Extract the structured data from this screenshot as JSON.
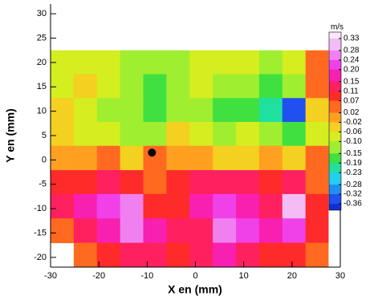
{
  "chart_data": {
    "type": "contour",
    "x_label": "X en (mm)",
    "y_label": "Y en (mm)",
    "colorbar_title": "m/s",
    "xlim": [
      -30,
      30
    ],
    "ylim": [
      -22,
      32
    ],
    "xticks": [
      -30,
      -20,
      -10,
      0,
      10,
      20,
      30
    ],
    "yticks": [
      -20,
      -15,
      -10,
      -5,
      0,
      5,
      10,
      15,
      20,
      25,
      30
    ],
    "x_edges": [
      -30,
      -25.2,
      -20.4,
      -15.6,
      -10.8,
      -6.0,
      -1.2,
      3.6,
      8.4,
      13.2,
      18.0,
      22.8,
      27.5
    ],
    "y_edges": [
      22.5,
      17.6,
      12.7,
      7.8,
      2.9,
      -2.1,
      -7.0,
      -12.0,
      -17.0,
      -22.0
    ],
    "z": [
      [
        -0.08,
        -0.07,
        -0.08,
        -0.12,
        -0.13,
        -0.12,
        -0.1,
        -0.08,
        -0.1,
        -0.14,
        -0.08,
        0.03
      ],
      [
        -0.07,
        -0.06,
        -0.1,
        -0.14,
        -0.16,
        -0.13,
        -0.1,
        -0.12,
        -0.15,
        -0.16,
        -0.12,
        0.05
      ],
      [
        -0.04,
        -0.08,
        -0.12,
        -0.14,
        -0.16,
        -0.11,
        -0.13,
        -0.17,
        -0.16,
        -0.22,
        -0.34,
        -0.05
      ],
      [
        -0.06,
        -0.08,
        -0.1,
        -0.12,
        -0.11,
        -0.05,
        -0.1,
        -0.12,
        -0.08,
        -0.13,
        -0.16,
        -0.08
      ],
      [
        0.0,
        -0.02,
        0.03,
        -0.03,
        0.04,
        0.01,
        0.0,
        -0.03,
        -0.06,
        0.0,
        -0.04,
        0.03
      ],
      [
        0.09,
        0.1,
        0.14,
        0.09,
        0.05,
        0.08,
        0.12,
        0.13,
        0.12,
        0.1,
        0.14,
        0.06
      ],
      [
        0.12,
        0.16,
        0.22,
        0.24,
        0.1,
        0.08,
        0.15,
        0.2,
        0.16,
        0.14,
        0.3,
        0.08
      ],
      [
        0.06,
        0.14,
        0.18,
        0.26,
        0.16,
        0.12,
        0.14,
        0.24,
        0.2,
        0.18,
        0.22,
        0.07
      ],
      [
        null,
        0.05,
        0.1,
        0.13,
        0.11,
        0.09,
        0.12,
        0.15,
        0.13,
        0.1,
        0.09,
        0.05
      ]
    ],
    "levels": [
      0.33,
      0.28,
      0.24,
      {
        "value": 0.2,
        "label": "0.20"
      },
      0.15,
      0.11,
      0.07,
      0.02,
      -0.02,
      -0.06,
      {
        "value": -0.1,
        "label": "-0.10"
      },
      -0.15,
      -0.19,
      -0.23,
      -0.28,
      -0.32,
      -0.36
    ],
    "colors": [
      "#f4bcf4",
      "#f080f0",
      "#f040e8",
      "#f820b0",
      "#ff2060",
      "#ff2a2a",
      "#ff6a20",
      "#ffa020",
      "#f4d020",
      "#d4ee20",
      "#a0ee30",
      "#40e040",
      "#20e0a0",
      "#20d0f0",
      "#2090f0",
      "#2050f0"
    ],
    "color_above": "#fbe8fb",
    "color_below": "#1030d0",
    "point": {
      "x": -9.0,
      "y": 1.5
    },
    "point_color": "#000000"
  }
}
